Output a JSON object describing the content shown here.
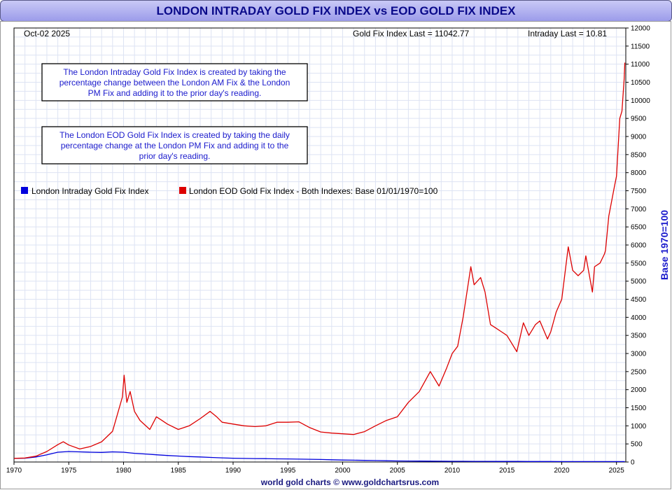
{
  "title": "LONDON INTRADAY GOLD FIX INDEX vs EOD GOLD FIX INDEX",
  "header": {
    "date": "Oct-02  2025",
    "gold_last": "Gold Fix Index Last = 11042.77",
    "intraday_last": "Intraday Last = 10.81"
  },
  "notes": {
    "intraday": [
      "The London Intraday Gold Fix Index is created by taking the",
      "percentage change between the London AM Fix & the London",
      "PM Fix and adding it to the prior day's reading."
    ],
    "eod": [
      "The London EOD Gold Fix Index is created by taking the daily",
      "percentage change at the London PM Fix and adding it to the",
      "prior day's reading."
    ]
  },
  "footer": "world gold charts © www.goldchartsrus.com",
  "colors": {
    "intraday": "#0000dd",
    "eod": "#dd0000",
    "grid": "#dde3f3",
    "title_text": "#0a0a8a"
  },
  "chart_data": {
    "type": "line",
    "title": "LONDON INTRADAY GOLD FIX INDEX vs EOD GOLD FIX INDEX",
    "ylabel": "Base 1970=100",
    "xlim": [
      1970,
      2025.85
    ],
    "ylim": [
      0,
      12000
    ],
    "x_ticks": [
      1970,
      1975,
      1980,
      1985,
      1990,
      1995,
      2000,
      2005,
      2010,
      2015,
      2020,
      2025
    ],
    "y_ticks": [
      0,
      500,
      1000,
      1500,
      2000,
      2500,
      3000,
      3500,
      4000,
      4500,
      5000,
      5500,
      6000,
      6500,
      7000,
      7500,
      8000,
      8500,
      9000,
      9500,
      10000,
      10500,
      11000,
      11500,
      12000
    ],
    "grid": true,
    "legend_position": "top-left",
    "series": [
      {
        "name": "London Intraday Gold Fix Index",
        "color": "#0000dd",
        "points": [
          [
            1970,
            100
          ],
          [
            1971,
            105
          ],
          [
            1972,
            140
          ],
          [
            1973,
            200
          ],
          [
            1974,
            270
          ],
          [
            1975,
            290
          ],
          [
            1976,
            280
          ],
          [
            1977,
            270
          ],
          [
            1978,
            265
          ],
          [
            1979,
            280
          ],
          [
            1980,
            270
          ],
          [
            1981,
            240
          ],
          [
            1982,
            220
          ],
          [
            1983,
            200
          ],
          [
            1984,
            180
          ],
          [
            1985,
            165
          ],
          [
            1986,
            150
          ],
          [
            1987,
            140
          ],
          [
            1988,
            125
          ],
          [
            1989,
            115
          ],
          [
            1990,
            105
          ],
          [
            1991,
            98
          ],
          [
            1992,
            95
          ],
          [
            1993,
            92
          ],
          [
            1994,
            88
          ],
          [
            1995,
            85
          ],
          [
            1996,
            80
          ],
          [
            1997,
            76
          ],
          [
            1998,
            70
          ],
          [
            1999,
            62
          ],
          [
            2000,
            55
          ],
          [
            2001,
            50
          ],
          [
            2002,
            45
          ],
          [
            2003,
            40
          ],
          [
            2004,
            35
          ],
          [
            2005,
            30
          ],
          [
            2006,
            28
          ],
          [
            2007,
            25
          ],
          [
            2008,
            23
          ],
          [
            2009,
            21
          ],
          [
            2010,
            20
          ],
          [
            2011,
            19
          ],
          [
            2012,
            18
          ],
          [
            2013,
            17
          ],
          [
            2014,
            16
          ],
          [
            2015,
            15
          ],
          [
            2016,
            15
          ],
          [
            2017,
            14
          ],
          [
            2018,
            13
          ],
          [
            2019,
            13
          ],
          [
            2020,
            12
          ],
          [
            2021,
            12
          ],
          [
            2022,
            11
          ],
          [
            2023,
            11
          ],
          [
            2024,
            11
          ],
          [
            2025,
            11
          ],
          [
            2025.76,
            10.81
          ]
        ]
      },
      {
        "name": "London EOD Gold Fix Index - Both Indexes: Base 01/01/1970=100",
        "color": "#dd0000",
        "points": [
          [
            1970,
            100
          ],
          [
            1971,
            110
          ],
          [
            1972,
            160
          ],
          [
            1973,
            290
          ],
          [
            1974,
            480
          ],
          [
            1974.5,
            560
          ],
          [
            1975,
            470
          ],
          [
            1976,
            360
          ],
          [
            1977,
            430
          ],
          [
            1978,
            560
          ],
          [
            1979,
            850
          ],
          [
            1979.9,
            1800
          ],
          [
            1980.05,
            2400
          ],
          [
            1980.3,
            1650
          ],
          [
            1980.6,
            1950
          ],
          [
            1981,
            1400
          ],
          [
            1981.5,
            1150
          ],
          [
            1982.4,
            900
          ],
          [
            1983,
            1250
          ],
          [
            1983.5,
            1150
          ],
          [
            1984,
            1050
          ],
          [
            1985,
            900
          ],
          [
            1986,
            1000
          ],
          [
            1987,
            1200
          ],
          [
            1987.9,
            1400
          ],
          [
            1988.5,
            1250
          ],
          [
            1989,
            1100
          ],
          [
            1990,
            1050
          ],
          [
            1991,
            1000
          ],
          [
            1992,
            980
          ],
          [
            1993,
            1000
          ],
          [
            1994,
            1100
          ],
          [
            1995,
            1100
          ],
          [
            1996,
            1110
          ],
          [
            1997,
            950
          ],
          [
            1998,
            830
          ],
          [
            1999,
            800
          ],
          [
            2000,
            780
          ],
          [
            2001,
            760
          ],
          [
            2002,
            840
          ],
          [
            2003,
            1000
          ],
          [
            2004,
            1150
          ],
          [
            2005,
            1250
          ],
          [
            2006,
            1650
          ],
          [
            2007,
            1950
          ],
          [
            2008,
            2500
          ],
          [
            2008.8,
            2100
          ],
          [
            2009.5,
            2600
          ],
          [
            2010,
            3000
          ],
          [
            2010.5,
            3200
          ],
          [
            2011,
            4000
          ],
          [
            2011.7,
            5400
          ],
          [
            2012,
            4900
          ],
          [
            2012.6,
            5100
          ],
          [
            2013,
            4700
          ],
          [
            2013.5,
            3800
          ],
          [
            2014,
            3700
          ],
          [
            2014.5,
            3600
          ],
          [
            2015,
            3500
          ],
          [
            2015.9,
            3050
          ],
          [
            2016.5,
            3850
          ],
          [
            2017,
            3500
          ],
          [
            2017.6,
            3800
          ],
          [
            2018,
            3900
          ],
          [
            2018.7,
            3400
          ],
          [
            2019,
            3600
          ],
          [
            2019.5,
            4150
          ],
          [
            2020,
            4500
          ],
          [
            2020.6,
            5950
          ],
          [
            2021,
            5300
          ],
          [
            2021.5,
            5150
          ],
          [
            2022,
            5300
          ],
          [
            2022.2,
            5700
          ],
          [
            2022.8,
            4700
          ],
          [
            2023,
            5400
          ],
          [
            2023.5,
            5500
          ],
          [
            2023.9,
            5750
          ],
          [
            2024,
            5850
          ],
          [
            2024.3,
            6800
          ],
          [
            2024.8,
            7600
          ],
          [
            2025,
            7900
          ],
          [
            2025.3,
            9500
          ],
          [
            2025.5,
            9700
          ],
          [
            2025.7,
            10600
          ],
          [
            2025.76,
            11042.77
          ]
        ]
      }
    ]
  }
}
